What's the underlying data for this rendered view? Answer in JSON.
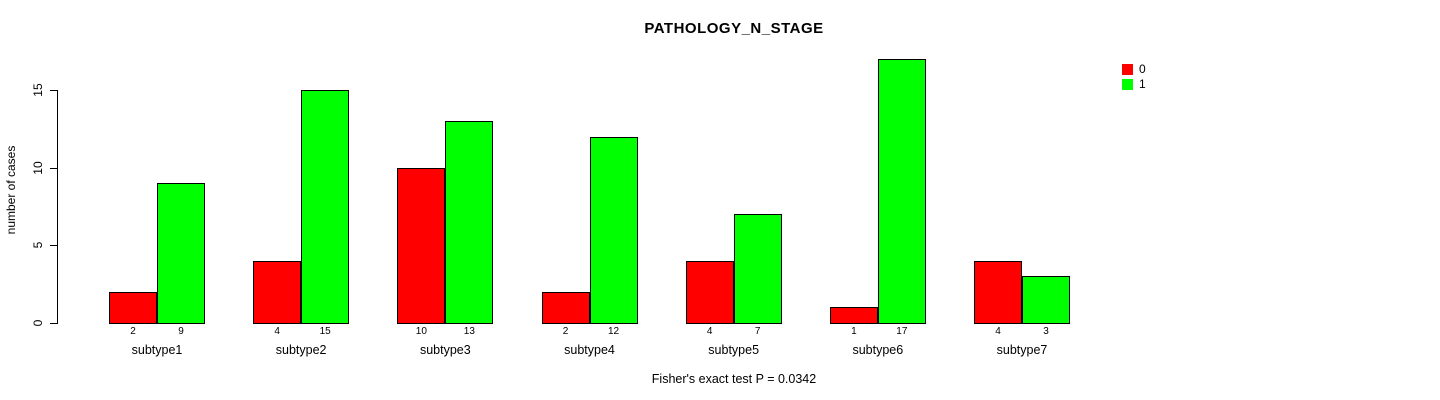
{
  "chart_data": {
    "type": "bar",
    "title": "PATHOLOGY_N_STAGE",
    "categories": [
      "subtype1",
      "subtype2",
      "subtype3",
      "subtype4",
      "subtype5",
      "subtype6",
      "subtype7"
    ],
    "series": [
      {
        "name": "0",
        "color": "#ff0000",
        "values": [
          2,
          4,
          10,
          2,
          4,
          1,
          4
        ]
      },
      {
        "name": "1",
        "color": "#00ff00",
        "values": [
          9,
          15,
          13,
          12,
          7,
          17,
          3
        ]
      }
    ],
    "xlabel": "",
    "ylabel": "number of cases",
    "yticks": [
      0,
      5,
      10,
      15
    ],
    "ylim": [
      0,
      17
    ],
    "grid": false,
    "legend_position": "top-right",
    "bar_borders": "#000000",
    "bar_value_labels_shown": true,
    "annotation": "Fisher's exact test P = 0.0342"
  }
}
